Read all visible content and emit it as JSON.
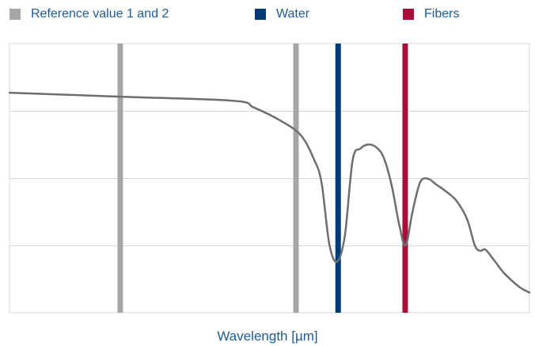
{
  "chart_data": {
    "type": "line",
    "title": "",
    "xlabel": "Wavelength [µm]",
    "ylabel": "",
    "grid": true,
    "legend_position": "top",
    "xlim": [
      0,
      100
    ],
    "ylim": [
      0,
      4
    ],
    "legend": [
      {
        "label": "Reference value 1 and 2",
        "color": "#a6a6a6"
      },
      {
        "label": "Water",
        "color": "#003b75"
      },
      {
        "label": "Fibers",
        "color": "#a90e3b"
      }
    ],
    "reference_lines": [
      {
        "series": "Reference value 1 and 2",
        "x": 21.3,
        "color": "#a6a6a6"
      },
      {
        "series": "Reference value 1 and 2",
        "x": 55.1,
        "color": "#a6a6a6"
      },
      {
        "series": "Water",
        "x": 63.2,
        "color": "#003b75"
      },
      {
        "series": "Fibers",
        "x": 76.1,
        "color": "#a90e3b"
      }
    ],
    "series": [
      {
        "color": "#6e6e6e",
        "x": [
          0,
          21.3,
          43,
          47,
          52,
          56,
          58.5,
          60,
          61.5,
          63,
          64.5,
          66,
          67.5,
          69,
          70.5,
          72,
          73.5,
          75,
          76.2,
          77.5,
          79,
          80.5,
          82,
          84,
          86,
          88,
          89.5,
          90.5,
          91.5,
          93,
          95,
          97,
          98.5,
          100
        ],
        "y": [
          3.27,
          3.21,
          3.15,
          3.05,
          2.86,
          2.64,
          2.29,
          1.94,
          1.02,
          0.76,
          1.15,
          2.27,
          2.44,
          2.5,
          2.46,
          2.3,
          1.89,
          1.29,
          1.0,
          1.5,
          1.94,
          1.99,
          1.91,
          1.8,
          1.66,
          1.39,
          1.0,
          0.92,
          0.94,
          0.8,
          0.6,
          0.45,
          0.36,
          0.3
        ]
      }
    ]
  }
}
